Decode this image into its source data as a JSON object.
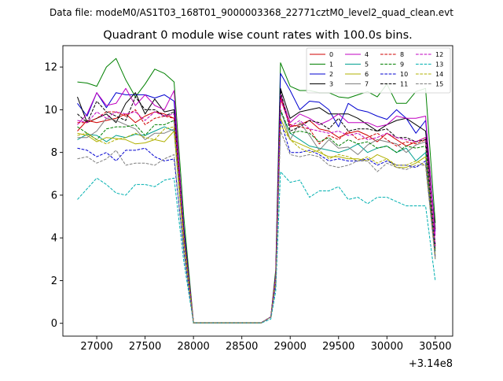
{
  "chart_data": {
    "type": "line",
    "suptitle": "Data file: modeM0/AS1T03_168T01_9000003368_22771cztM0_level2_quad_clean.evt",
    "title": "Quadrant 0 module wise count rates with 100.0s bins.",
    "xlabel": "",
    "ylabel": "",
    "offset_text": "+3.14e8",
    "xlim": [
      26650,
      30680
    ],
    "ylim": [
      -0.6,
      13.0
    ],
    "x_ticks": [
      27000,
      27500,
      28000,
      28500,
      29000,
      29500,
      30000,
      30500
    ],
    "x_tick_labels": [
      "27000",
      "27500",
      "28000",
      "28500",
      "29000",
      "29500",
      "30000",
      "30500"
    ],
    "y_ticks": [
      0,
      2,
      4,
      6,
      8,
      10,
      12
    ],
    "y_tick_labels": [
      "0",
      "2",
      "4",
      "6",
      "8",
      "10",
      "12"
    ],
    "legend_position": "top-right",
    "x": [
      26800,
      26900,
      27000,
      27100,
      27200,
      27300,
      27400,
      27500,
      27600,
      27700,
      27800,
      27900,
      28000,
      28100,
      28200,
      28300,
      28400,
      28500,
      28600,
      28700,
      28800,
      28850,
      28900,
      29000,
      29100,
      29200,
      29300,
      29400,
      29500,
      29600,
      29700,
      29800,
      29900,
      30000,
      30100,
      30200,
      30300,
      30400,
      30500
    ],
    "series": [
      {
        "name": "0",
        "color": "#d00000",
        "dash": "solid",
        "values": [
          9.0,
          9.5,
          9.4,
          9.5,
          9.6,
          9.8,
          9.4,
          9.7,
          9.9,
          9.8,
          9.6,
          4.0,
          0.02,
          0.02,
          0.02,
          0.02,
          0.02,
          0.02,
          0.02,
          0.02,
          0.3,
          2.0,
          10.6,
          9.2,
          9.3,
          9.5,
          9.1,
          9.0,
          8.7,
          8.9,
          9.0,
          8.8,
          8.5,
          8.9,
          8.6,
          8.3,
          8.5,
          8.7,
          3.6
        ]
      },
      {
        "name": "1",
        "color": "#008000",
        "dash": "solid",
        "values": [
          11.3,
          11.25,
          11.1,
          12.0,
          12.4,
          11.4,
          10.6,
          11.2,
          11.9,
          11.7,
          11.3,
          5.0,
          0.03,
          0.03,
          0.03,
          0.03,
          0.03,
          0.03,
          0.03,
          0.03,
          0.3,
          2.5,
          12.2,
          11.1,
          10.9,
          10.9,
          10.8,
          10.8,
          10.6,
          10.55,
          10.7,
          10.85,
          10.6,
          11.2,
          10.3,
          10.3,
          10.85,
          11.0,
          4.7
        ]
      },
      {
        "name": "2",
        "color": "#0000d0",
        "dash": "solid",
        "values": [
          10.3,
          9.7,
          10.8,
          10.1,
          10.8,
          10.7,
          10.7,
          10.7,
          10.55,
          10.7,
          10.4,
          4.5,
          0.02,
          0.02,
          0.02,
          0.02,
          0.02,
          0.02,
          0.02,
          0.02,
          0.3,
          2.3,
          11.7,
          10.9,
          10.0,
          10.4,
          10.35,
          10.0,
          9.2,
          10.3,
          10.0,
          9.9,
          9.7,
          9.55,
          10.0,
          9.6,
          8.9,
          9.5,
          4.3
        ]
      },
      {
        "name": "3",
        "color": "#000000",
        "dash": "solid",
        "values": [
          10.6,
          9.4,
          9.6,
          9.8,
          9.4,
          10.3,
          10.8,
          9.8,
          10.5,
          9.9,
          10.0,
          4.3,
          0.02,
          0.02,
          0.02,
          0.02,
          0.02,
          0.02,
          0.02,
          0.02,
          0.3,
          2.2,
          11.0,
          9.6,
          9.9,
          10.0,
          10.1,
          9.8,
          9.8,
          9.8,
          9.6,
          9.3,
          9.0,
          9.3,
          9.5,
          9.6,
          9.3,
          9.0,
          4.4
        ]
      },
      {
        "name": "4",
        "color": "#c000c0",
        "dash": "solid",
        "values": [
          9.3,
          9.8,
          10.8,
          10.2,
          10.3,
          11.0,
          10.2,
          10.7,
          10.2,
          10.0,
          10.9,
          4.2,
          0.02,
          0.02,
          0.02,
          0.02,
          0.02,
          0.02,
          0.02,
          0.02,
          0.3,
          2.2,
          10.7,
          9.4,
          9.8,
          9.6,
          9.3,
          9.5,
          9.8,
          9.4,
          9.4,
          9.4,
          9.2,
          9.3,
          9.7,
          9.6,
          9.6,
          9.7,
          4.1
        ]
      },
      {
        "name": "5",
        "color": "#00a090",
        "dash": "solid",
        "values": [
          8.6,
          8.85,
          8.8,
          8.5,
          8.8,
          8.7,
          8.85,
          8.8,
          9.0,
          9.2,
          9.0,
          3.8,
          0.02,
          0.02,
          0.02,
          0.02,
          0.02,
          0.02,
          0.02,
          0.02,
          0.3,
          2.0,
          9.9,
          8.9,
          8.6,
          8.3,
          8.2,
          8.1,
          8.0,
          8.15,
          8.4,
          8.0,
          8.2,
          8.3,
          8.0,
          8.2,
          7.6,
          8.0,
          3.4
        ]
      },
      {
        "name": "6",
        "color": "#b0b000",
        "dash": "solid",
        "values": [
          8.9,
          8.8,
          8.5,
          8.7,
          8.65,
          8.6,
          8.4,
          8.45,
          8.6,
          8.5,
          9.0,
          3.8,
          0.02,
          0.02,
          0.02,
          0.02,
          0.02,
          0.02,
          0.02,
          0.02,
          0.3,
          2.0,
          9.6,
          8.6,
          8.4,
          8.2,
          8.0,
          7.8,
          7.8,
          7.7,
          7.7,
          7.6,
          7.9,
          7.7,
          7.3,
          7.3,
          7.5,
          7.8,
          3.2
        ]
      },
      {
        "name": "7",
        "color": "#7f7f7f",
        "dash": "solid",
        "values": [
          8.7,
          8.7,
          9.0,
          9.6,
          9.5,
          9.3,
          9.1,
          8.6,
          8.9,
          8.9,
          9.1,
          3.9,
          0.02,
          0.02,
          0.02,
          0.02,
          0.02,
          0.02,
          0.02,
          0.02,
          0.3,
          2.0,
          10.0,
          8.6,
          9.4,
          8.8,
          8.1,
          8.6,
          8.2,
          8.25,
          7.9,
          8.35,
          8.6,
          8.5,
          8.4,
          8.0,
          8.35,
          8.5,
          3.5
        ]
      },
      {
        "name": "8",
        "color": "#d00000",
        "dash": "dashed",
        "values": [
          9.4,
          9.4,
          9.6,
          9.9,
          9.9,
          9.7,
          10.0,
          9.3,
          9.6,
          9.7,
          9.6,
          4.1,
          0.02,
          0.02,
          0.02,
          0.02,
          0.02,
          0.02,
          0.02,
          0.02,
          0.3,
          2.2,
          10.5,
          9.3,
          9.2,
          9.1,
          8.4,
          8.8,
          8.6,
          9.0,
          8.6,
          8.7,
          8.9,
          8.6,
          8.3,
          8.5,
          8.4,
          8.6,
          3.5
        ]
      },
      {
        "name": "9",
        "color": "#008000",
        "dash": "dashed",
        "values": [
          9.2,
          8.9,
          8.6,
          9.1,
          9.2,
          9.2,
          9.3,
          8.8,
          9.3,
          9.3,
          9.5,
          4.0,
          0.02,
          0.02,
          0.02,
          0.02,
          0.02,
          0.02,
          0.02,
          0.02,
          0.3,
          2.1,
          10.0,
          8.9,
          9.0,
          8.9,
          8.5,
          8.7,
          8.3,
          8.6,
          8.4,
          8.5,
          8.2,
          8.3,
          8.0,
          8.3,
          8.2,
          8.3,
          3.4
        ]
      },
      {
        "name": "10",
        "color": "#0000d0",
        "dash": "dashed",
        "values": [
          8.2,
          8.1,
          7.8,
          8.0,
          7.6,
          8.1,
          8.1,
          8.2,
          7.8,
          7.6,
          7.7,
          3.4,
          0.02,
          0.02,
          0.02,
          0.02,
          0.02,
          0.02,
          0.02,
          0.02,
          0.3,
          1.8,
          9.5,
          8.0,
          8.0,
          8.1,
          7.9,
          7.6,
          7.7,
          7.6,
          7.6,
          7.7,
          7.4,
          7.6,
          7.4,
          7.4,
          7.3,
          7.6,
          3.1
        ]
      },
      {
        "name": "11",
        "color": "#000000",
        "dash": "dashed",
        "values": [
          9.8,
          9.4,
          10.4,
          9.9,
          9.7,
          9.5,
          10.6,
          10.0,
          10.0,
          9.7,
          9.9,
          4.3,
          0.02,
          0.02,
          0.02,
          0.02,
          0.02,
          0.02,
          0.02,
          0.02,
          0.3,
          2.2,
          10.9,
          9.0,
          9.2,
          9.5,
          9.4,
          9.1,
          9.6,
          9.0,
          9.1,
          9.1,
          9.0,
          9.1,
          8.7,
          8.7,
          8.5,
          8.6,
          3.7
        ]
      },
      {
        "name": "12",
        "color": "#c000c0",
        "dash": "dashed",
        "values": [
          9.5,
          9.4,
          9.9,
          9.6,
          9.9,
          9.8,
          9.9,
          9.5,
          9.9,
          9.7,
          9.8,
          4.2,
          0.02,
          0.02,
          0.02,
          0.02,
          0.02,
          0.02,
          0.02,
          0.02,
          0.3,
          2.2,
          10.5,
          9.2,
          9.5,
          9.1,
          9.0,
          8.9,
          9.0,
          8.8,
          8.9,
          8.6,
          8.7,
          8.9,
          8.7,
          8.6,
          8.5,
          8.7,
          3.6
        ]
      },
      {
        "name": "13",
        "color": "#00b0b0",
        "dash": "dashed",
        "values": [
          5.8,
          6.3,
          6.8,
          6.5,
          6.1,
          6.0,
          6.5,
          6.5,
          6.4,
          6.7,
          6.8,
          2.9,
          0.01,
          0.01,
          0.01,
          0.01,
          0.01,
          0.01,
          0.01,
          0.01,
          0.2,
          1.5,
          7.1,
          6.6,
          6.7,
          5.9,
          6.2,
          6.2,
          6.4,
          5.8,
          5.9,
          5.6,
          5.9,
          5.9,
          5.7,
          5.5,
          5.5,
          5.5,
          2.0
        ]
      },
      {
        "name": "14",
        "color": "#b0b000",
        "dash": "dashed",
        "values": [
          8.8,
          8.9,
          8.6,
          8.4,
          8.6,
          8.7,
          8.9,
          8.7,
          8.6,
          9.1,
          9.2,
          3.9,
          0.02,
          0.02,
          0.02,
          0.02,
          0.02,
          0.02,
          0.02,
          0.02,
          0.3,
          2.0,
          9.3,
          8.6,
          8.2,
          8.0,
          8.1,
          7.7,
          7.9,
          7.8,
          7.6,
          7.8,
          7.5,
          7.7,
          7.4,
          7.4,
          7.6,
          7.4,
          3.0
        ]
      },
      {
        "name": "15",
        "color": "#7f7f7f",
        "dash": "dashed",
        "values": [
          7.7,
          7.8,
          7.5,
          7.7,
          8.1,
          7.4,
          7.5,
          7.5,
          7.4,
          7.7,
          7.9,
          3.3,
          0.02,
          0.02,
          0.02,
          0.02,
          0.02,
          0.02,
          0.02,
          0.02,
          0.3,
          1.8,
          9.0,
          7.9,
          7.8,
          7.9,
          7.8,
          7.4,
          7.3,
          7.4,
          7.6,
          7.6,
          7.1,
          7.5,
          7.3,
          7.2,
          7.4,
          7.4,
          3.0
        ]
      }
    ]
  }
}
